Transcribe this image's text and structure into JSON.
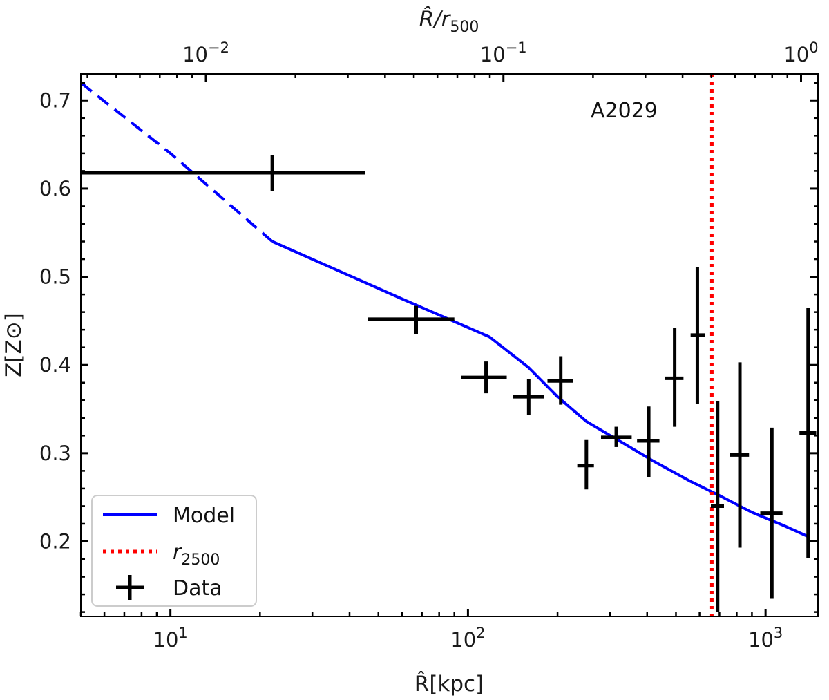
{
  "chart_data": {
    "type": "scatter",
    "annotation": "A2029",
    "xlabel": "R̂[kpc]",
    "ylabel": "Z[Z⊙]",
    "top_xlabel": "R̂/r500",
    "x_scale": "log",
    "xlim": [
      5,
      1500
    ],
    "ylim": [
      0.115,
      0.73
    ],
    "x_ticks": [
      {
        "value": 10,
        "base": "10",
        "exp": "1"
      },
      {
        "value": 100,
        "base": "10",
        "exp": "2"
      },
      {
        "value": 1000,
        "base": "10",
        "exp": "3"
      }
    ],
    "top_x_ticks": [
      {
        "value": 0.01,
        "base": "10",
        "exp": "−2"
      },
      {
        "value": 0.1,
        "base": "10",
        "exp": "−1"
      },
      {
        "value": 1,
        "base": "10",
        "exp": "0"
      }
    ],
    "top_xlim": [
      0.0038,
      1.14
    ],
    "y_ticks": [
      "0.2",
      "0.3",
      "0.4",
      "0.5",
      "0.6",
      "0.7"
    ],
    "grid": false,
    "legend": {
      "position": "bottom-left",
      "entries": [
        {
          "name": "Model",
          "base": "Model",
          "sub": "",
          "color": "#0000ff",
          "style": "solid"
        },
        {
          "name": "r2500",
          "base": "r",
          "sub": "2500",
          "color": "#ff0000",
          "style": "dotted"
        },
        {
          "name": "Data",
          "base": "Data",
          "sub": "",
          "color": "#000000",
          "style": "errorbar"
        }
      ]
    },
    "series": [
      {
        "name": "Model",
        "color": "#0000ff",
        "dashed_points": [
          [
            5.0,
            0.72
          ],
          [
            10.0,
            0.64
          ],
          [
            22.0,
            0.54
          ]
        ],
        "solid_points": [
          [
            22.0,
            0.54
          ],
          [
            60.0,
            0.475
          ],
          [
            118.0,
            0.432
          ],
          [
            160.0,
            0.397
          ],
          [
            200.0,
            0.364
          ],
          [
            250.0,
            0.336
          ],
          [
            330.0,
            0.312
          ],
          [
            420.0,
            0.291
          ],
          [
            560.0,
            0.268
          ],
          [
            700.0,
            0.252
          ],
          [
            900.0,
            0.233
          ],
          [
            1150.0,
            0.218
          ],
          [
            1400.0,
            0.205
          ]
        ]
      },
      {
        "name": "r2500",
        "color": "#ff0000",
        "x": 660
      },
      {
        "name": "Data",
        "color": "#000000",
        "points": [
          {
            "x": 22,
            "xlo": 4,
            "xhi": 45,
            "y": 0.618,
            "ylo": 0.597,
            "yhi": 0.638
          },
          {
            "x": 67,
            "xlo": 46,
            "xhi": 90,
            "y": 0.452,
            "ylo": 0.435,
            "yhi": 0.467
          },
          {
            "x": 115,
            "xlo": 95,
            "xhi": 135,
            "y": 0.386,
            "ylo": 0.368,
            "yhi": 0.404
          },
          {
            "x": 160,
            "xlo": 142,
            "xhi": 180,
            "y": 0.364,
            "ylo": 0.343,
            "yhi": 0.384
          },
          {
            "x": 205,
            "xlo": 185,
            "xhi": 225,
            "y": 0.382,
            "ylo": 0.355,
            "yhi": 0.41
          },
          {
            "x": 250,
            "xlo": 233,
            "xhi": 265,
            "y": 0.286,
            "ylo": 0.259,
            "yhi": 0.315
          },
          {
            "x": 315,
            "xlo": 280,
            "xhi": 355,
            "y": 0.318,
            "ylo": 0.307,
            "yhi": 0.33
          },
          {
            "x": 405,
            "xlo": 370,
            "xhi": 440,
            "y": 0.314,
            "ylo": 0.273,
            "yhi": 0.353
          },
          {
            "x": 495,
            "xlo": 460,
            "xhi": 530,
            "y": 0.385,
            "ylo": 0.33,
            "yhi": 0.442
          },
          {
            "x": 590,
            "xlo": 560,
            "xhi": 625,
            "y": 0.434,
            "ylo": 0.356,
            "yhi": 0.511
          },
          {
            "x": 690,
            "xlo": 655,
            "xhi": 725,
            "y": 0.24,
            "ylo": 0.12,
            "yhi": 0.359
          },
          {
            "x": 820,
            "xlo": 760,
            "xhi": 880,
            "y": 0.298,
            "ylo": 0.193,
            "yhi": 0.403
          },
          {
            "x": 1050,
            "xlo": 960,
            "xhi": 1140,
            "y": 0.232,
            "ylo": 0.135,
            "yhi": 0.329
          },
          {
            "x": 1390,
            "xlo": 1300,
            "xhi": 1480,
            "y": 0.323,
            "ylo": 0.181,
            "yhi": 0.465
          }
        ]
      }
    ]
  }
}
